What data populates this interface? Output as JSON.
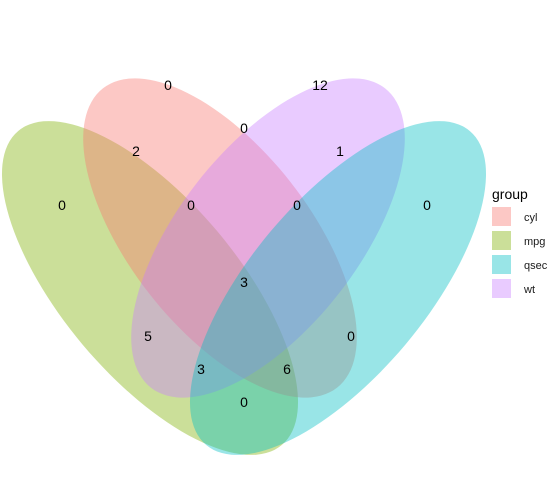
{
  "legend": {
    "title": "group",
    "items": [
      {
        "label": "cyl",
        "color": "#F8766D"
      },
      {
        "label": "mpg",
        "color": "#7CAE00"
      },
      {
        "label": "qsec",
        "color": "#00BFC4"
      },
      {
        "label": "wt",
        "color": "#C77CFF"
      }
    ]
  },
  "sets": [
    {
      "name": "cyl",
      "color": "#F8766D",
      "opacity": 0.4
    },
    {
      "name": "mpg",
      "color": "#7CAE00",
      "opacity": 0.4
    },
    {
      "name": "qsec",
      "color": "#00BFC4",
      "opacity": 0.4
    },
    {
      "name": "wt",
      "color": "#C77CFF",
      "opacity": 0.4
    }
  ],
  "regions": {
    "cyl_only": "0",
    "wt_only": "12",
    "cyl_wt": "0",
    "cyl_mpg": "2",
    "wt_qsec": "1",
    "mpg_only": "0",
    "cyl_mpg_wt": "0",
    "cyl_wt_qsec": "0",
    "qsec_only": "0",
    "all_four": "3",
    "mpg_wt": "5",
    "cyl_qsec": "0",
    "mpg_wt_qsec": "3",
    "cyl_mpg_qsec": "6",
    "mpg_qsec": "0"
  }
}
